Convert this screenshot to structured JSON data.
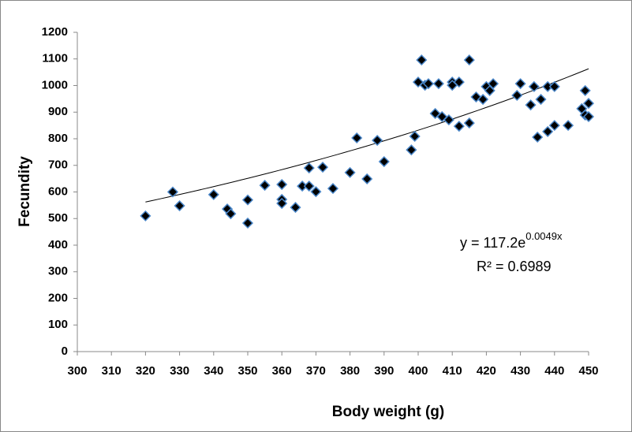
{
  "chart_data": {
    "type": "scatter",
    "x_label": "Body weight (g)",
    "y_label": "Fecundity",
    "xlim": [
      300,
      450
    ],
    "ylim": [
      0,
      1200
    ],
    "xticks": [
      300,
      310,
      320,
      330,
      340,
      350,
      360,
      370,
      380,
      390,
      400,
      410,
      420,
      430,
      440,
      450
    ],
    "yticks": [
      0,
      100,
      200,
      300,
      400,
      500,
      600,
      700,
      800,
      900,
      1000,
      1100,
      1200
    ],
    "grid": false,
    "series": [
      {
        "name": "Fecundity",
        "color": "#000000",
        "edge_color": "#4a86c8",
        "x": [
          320,
          328,
          330,
          340,
          344,
          345,
          350,
          350,
          355,
          360,
          360,
          360,
          364,
          366,
          368,
          368,
          370,
          372,
          375,
          380,
          382,
          385,
          388,
          390,
          398,
          399,
          400,
          401,
          402,
          403,
          405,
          406,
          407,
          409,
          410,
          410,
          412,
          412,
          415,
          415,
          417,
          419,
          420,
          421,
          422,
          429,
          430,
          433,
          434,
          435,
          436,
          438,
          438,
          440,
          440,
          444,
          448,
          449,
          449,
          450,
          450
        ],
        "values": [
          510,
          600,
          548,
          590,
          536,
          518,
          570,
          483,
          625,
          628,
          572,
          557,
          542,
          622,
          690,
          622,
          601,
          693,
          613,
          673,
          803,
          649,
          794,
          714,
          758,
          809,
          1013,
          1096,
          1001,
          1007,
          895,
          1007,
          883,
          871,
          1013,
          1001,
          847,
          1013,
          859,
          1096,
          957,
          948,
          996,
          981,
          1007,
          963,
          1007,
          927,
          996,
          806,
          948,
          827,
          996,
          850,
          996,
          850,
          913,
          889,
          981,
          933,
          883
        ]
      }
    ],
    "trendline": {
      "a": 117.2,
      "b": 0.0049,
      "color": "#000000"
    },
    "equation": "y = 117.2e",
    "equation_exponent": "0.0049x",
    "r_squared_label": "R² = 0.6989"
  }
}
